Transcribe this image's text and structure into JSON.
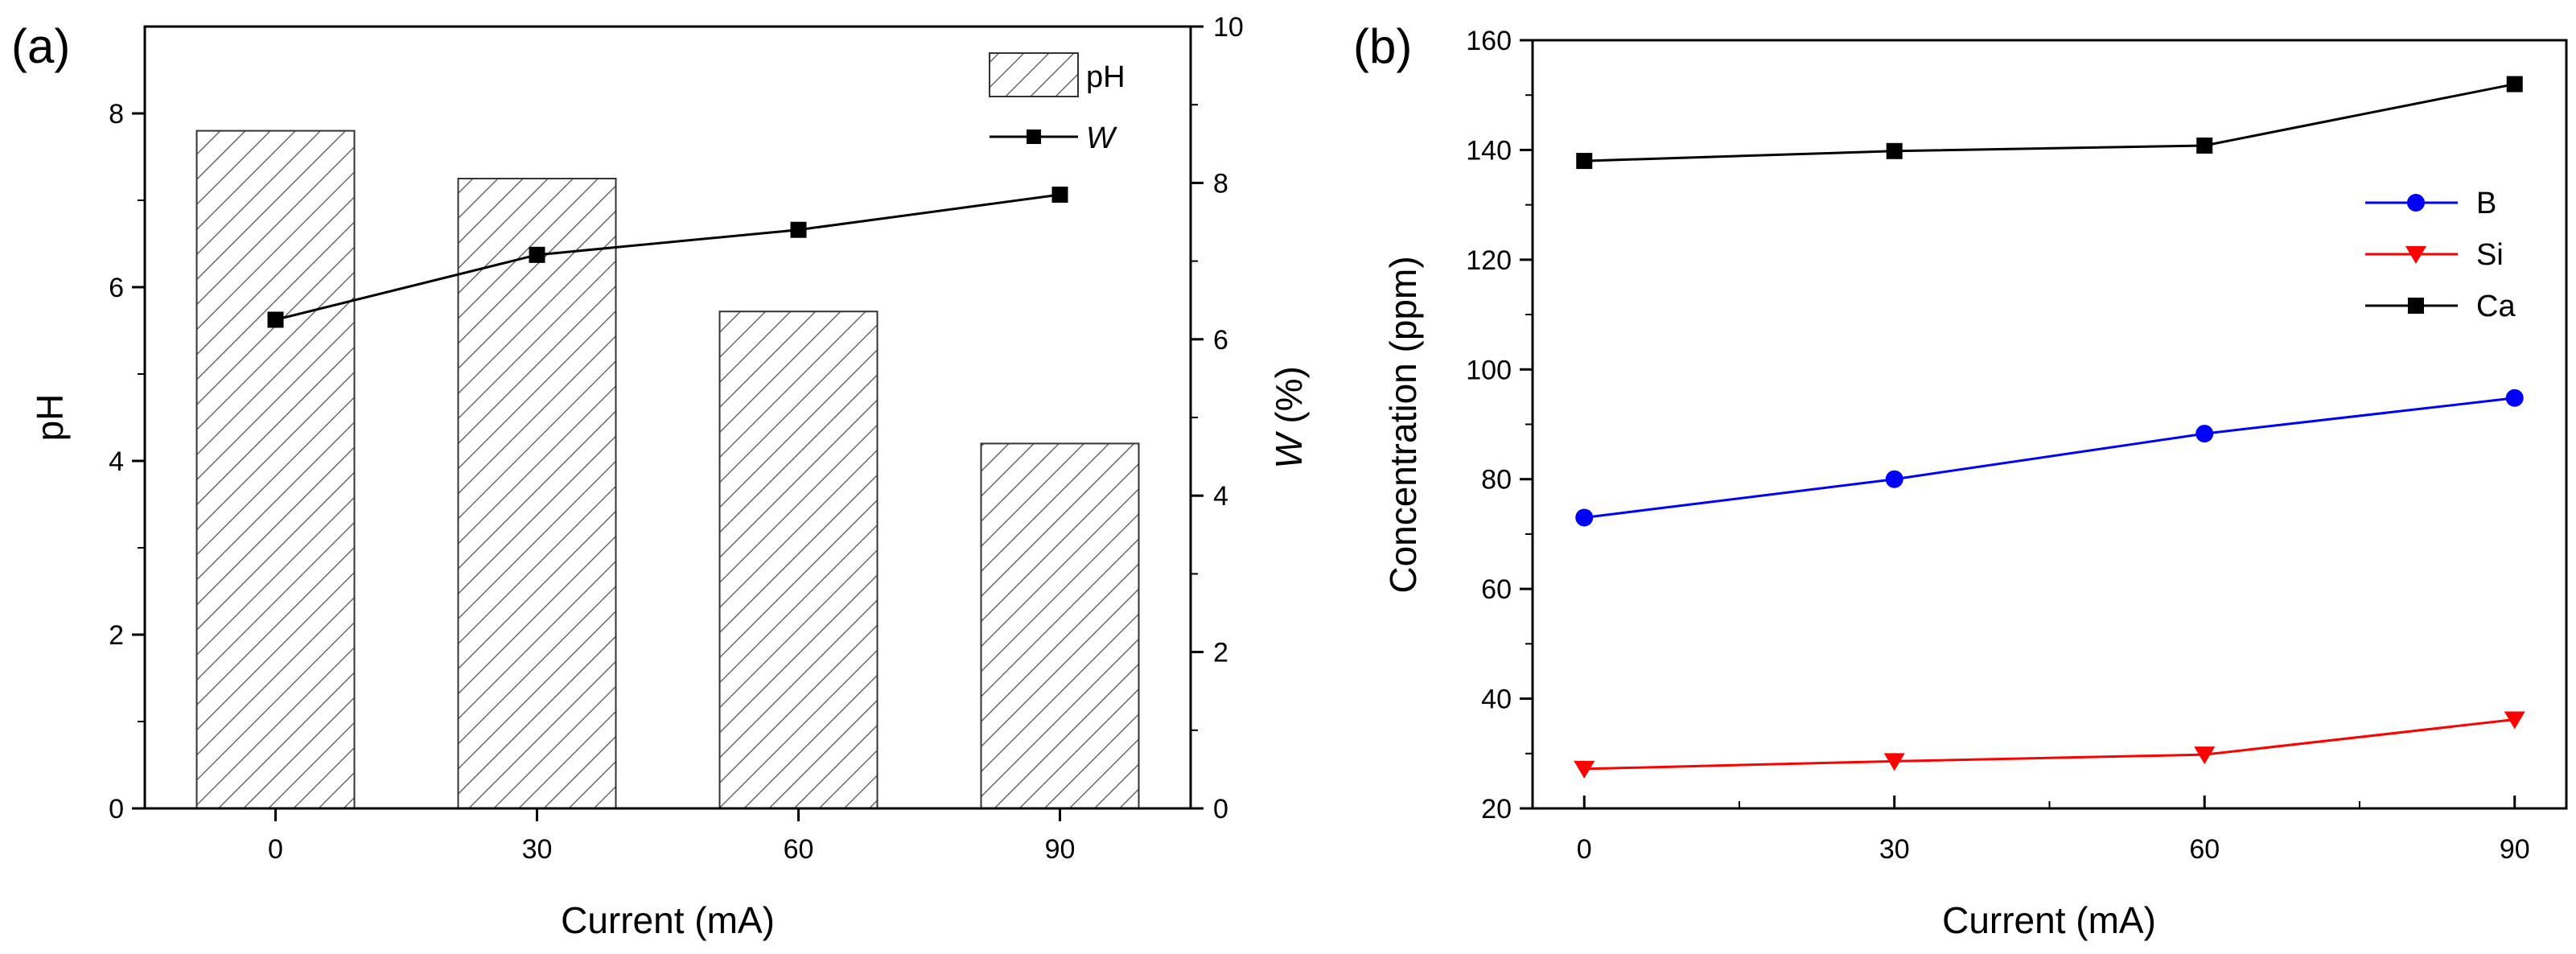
{
  "chart_data": [
    {
      "panel": "(a)",
      "type": "bar",
      "categories": [
        "0",
        "30",
        "60",
        "90"
      ],
      "series": [
        {
          "name": "pH",
          "type": "bar",
          "axis": "left",
          "values": [
            7.8,
            7.25,
            5.72,
            4.2
          ]
        },
        {
          "name": "W",
          "type": "line",
          "axis": "right",
          "values": [
            6.25,
            7.08,
            7.4,
            7.85
          ]
        }
      ],
      "xlabel": "Current (mA)",
      "ylabel": "pH",
      "y2label": "W (%)",
      "y2label_main": "W",
      "y2label_unit": " (%)",
      "ylim": [
        0,
        9
      ],
      "yticks": [
        0,
        2,
        4,
        6,
        8
      ],
      "y2lim": [
        0,
        10
      ],
      "y2ticks": [
        0,
        2,
        4,
        6,
        8,
        10
      ],
      "legend": [
        "pH",
        "W"
      ],
      "legend_position": "top-right"
    },
    {
      "panel": "(b)",
      "type": "line",
      "x": [
        0,
        30,
        60,
        90
      ],
      "xticks": [
        0,
        30,
        60,
        90
      ],
      "series": [
        {
          "name": "B",
          "color": "#0000ff",
          "marker": "circle",
          "values": [
            73,
            80,
            88.3,
            94.8
          ]
        },
        {
          "name": "Si",
          "color": "#ff0000",
          "marker": "triangle-down",
          "values": [
            27.2,
            28.6,
            29.8,
            36.2
          ]
        },
        {
          "name": "Ca",
          "color": "#000000",
          "marker": "square",
          "values": [
            138,
            139.8,
            140.8,
            152
          ]
        }
      ],
      "xlabel": "Current (mA)",
      "ylabel": "Concentration (ppm)",
      "xlim": [
        -5,
        95
      ],
      "ylim": [
        20,
        160
      ],
      "yticks": [
        20,
        40,
        60,
        80,
        100,
        120,
        140,
        160
      ],
      "legend": [
        "B",
        "Si",
        "Ca"
      ],
      "legend_position": "right"
    }
  ]
}
